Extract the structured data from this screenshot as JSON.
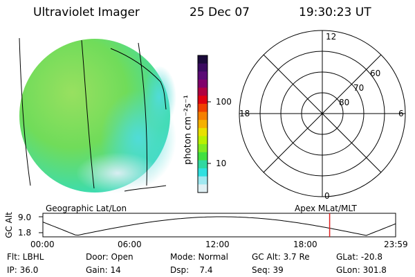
{
  "header": {
    "instrument": "Ultraviolet Imager",
    "date": "25 Dec 07",
    "time": "19:30:23 UT"
  },
  "colorbar": {
    "unit_label": "photon cm⁻²s⁻¹",
    "ticks": [
      "100",
      "10"
    ],
    "colors": [
      "#1a0a3a",
      "#3a0a60",
      "#5a0a75",
      "#80006a",
      "#b00040",
      "#e00010",
      "#f04000",
      "#f58000",
      "#f5b000",
      "#e8e000",
      "#b8f000",
      "#80ea20",
      "#40e040",
      "#30d8a0",
      "#30e0e0",
      "#a0e8f0",
      "#e0f0f4"
    ]
  },
  "polar_plot": {
    "mlt_labels": {
      "top": "12",
      "left": "18",
      "right": "6",
      "bottom": "0"
    },
    "lat_labels": [
      "60",
      "70",
      "80"
    ]
  },
  "altitude_plot": {
    "ylabel": "GC Alt",
    "yticks": [
      "9.0",
      "1.8"
    ],
    "left_title": "Geographic Lat/Lon",
    "right_title": "Apex MLat/MLT",
    "xticks": [
      "00:00",
      "06:00",
      "12:00",
      "18:00",
      "23:59"
    ],
    "marker_time_hours": 19.51,
    "marker_color": "#e02020"
  },
  "status": {
    "row1": {
      "flt": "Flt: LBHL",
      "door": "Door: Open",
      "mode": "Mode: Normal",
      "gc_alt": "GC Alt: 3.7 Re",
      "glat": "GLat: -20.8"
    },
    "row2": {
      "ip": "IP: 36.0",
      "gain": "Gain: 14",
      "dsp": "Dsp:    7.4",
      "seq": "Seq: 39",
      "glon": "GLon: 301.8"
    }
  }
}
